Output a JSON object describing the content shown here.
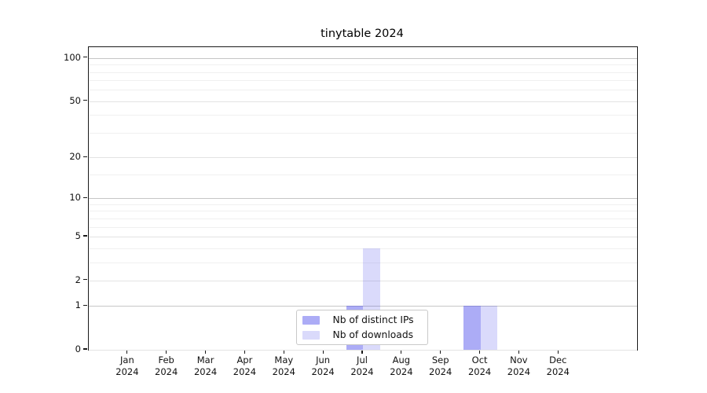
{
  "chart_data": {
    "type": "bar",
    "title": "tinytable 2024",
    "categories": [
      "Jan",
      "Feb",
      "Mar",
      "Apr",
      "May",
      "Jun",
      "Jul",
      "Aug",
      "Sep",
      "Oct",
      "Nov",
      "Dec"
    ],
    "x_year": "2024",
    "series": [
      {
        "name": "Nb of distinct IPs",
        "color": "rgba(70,70,235,0.45)",
        "swatch_hex": "#a9a9f2",
        "values": [
          0,
          0,
          0,
          0,
          0,
          0,
          1,
          0,
          0,
          1,
          0,
          0
        ]
      },
      {
        "name": "Nb of downloads",
        "color": "rgba(70,70,235,0.20)",
        "swatch_hex": "#d9d9f8",
        "values": [
          0,
          0,
          0,
          0,
          0,
          0,
          4,
          0,
          0,
          1,
          0,
          0
        ]
      }
    ],
    "y_axis": {
      "scale": "log1p",
      "ticks": [
        0,
        1,
        2,
        5,
        10,
        20,
        50,
        100
      ],
      "emphasized_ticks": [
        1,
        10,
        100
      ],
      "minor_ticks": [
        3,
        4,
        6,
        7,
        8,
        9,
        15,
        30,
        40,
        60,
        70,
        80,
        90
      ],
      "max": 119
    },
    "x_axis": {
      "months_shown": 12,
      "padding_months": 1
    },
    "legend": {
      "position": "lower center"
    },
    "grid": true
  },
  "colors": {
    "background": "#ffffff",
    "axis_spine": "#1a1a1a",
    "text": "#111111",
    "grid_major": "#c6c6c6",
    "grid_mid": "#e3e3e3",
    "grid_minor": "#f0f0f0",
    "legend_border": "#c9c9c9"
  }
}
